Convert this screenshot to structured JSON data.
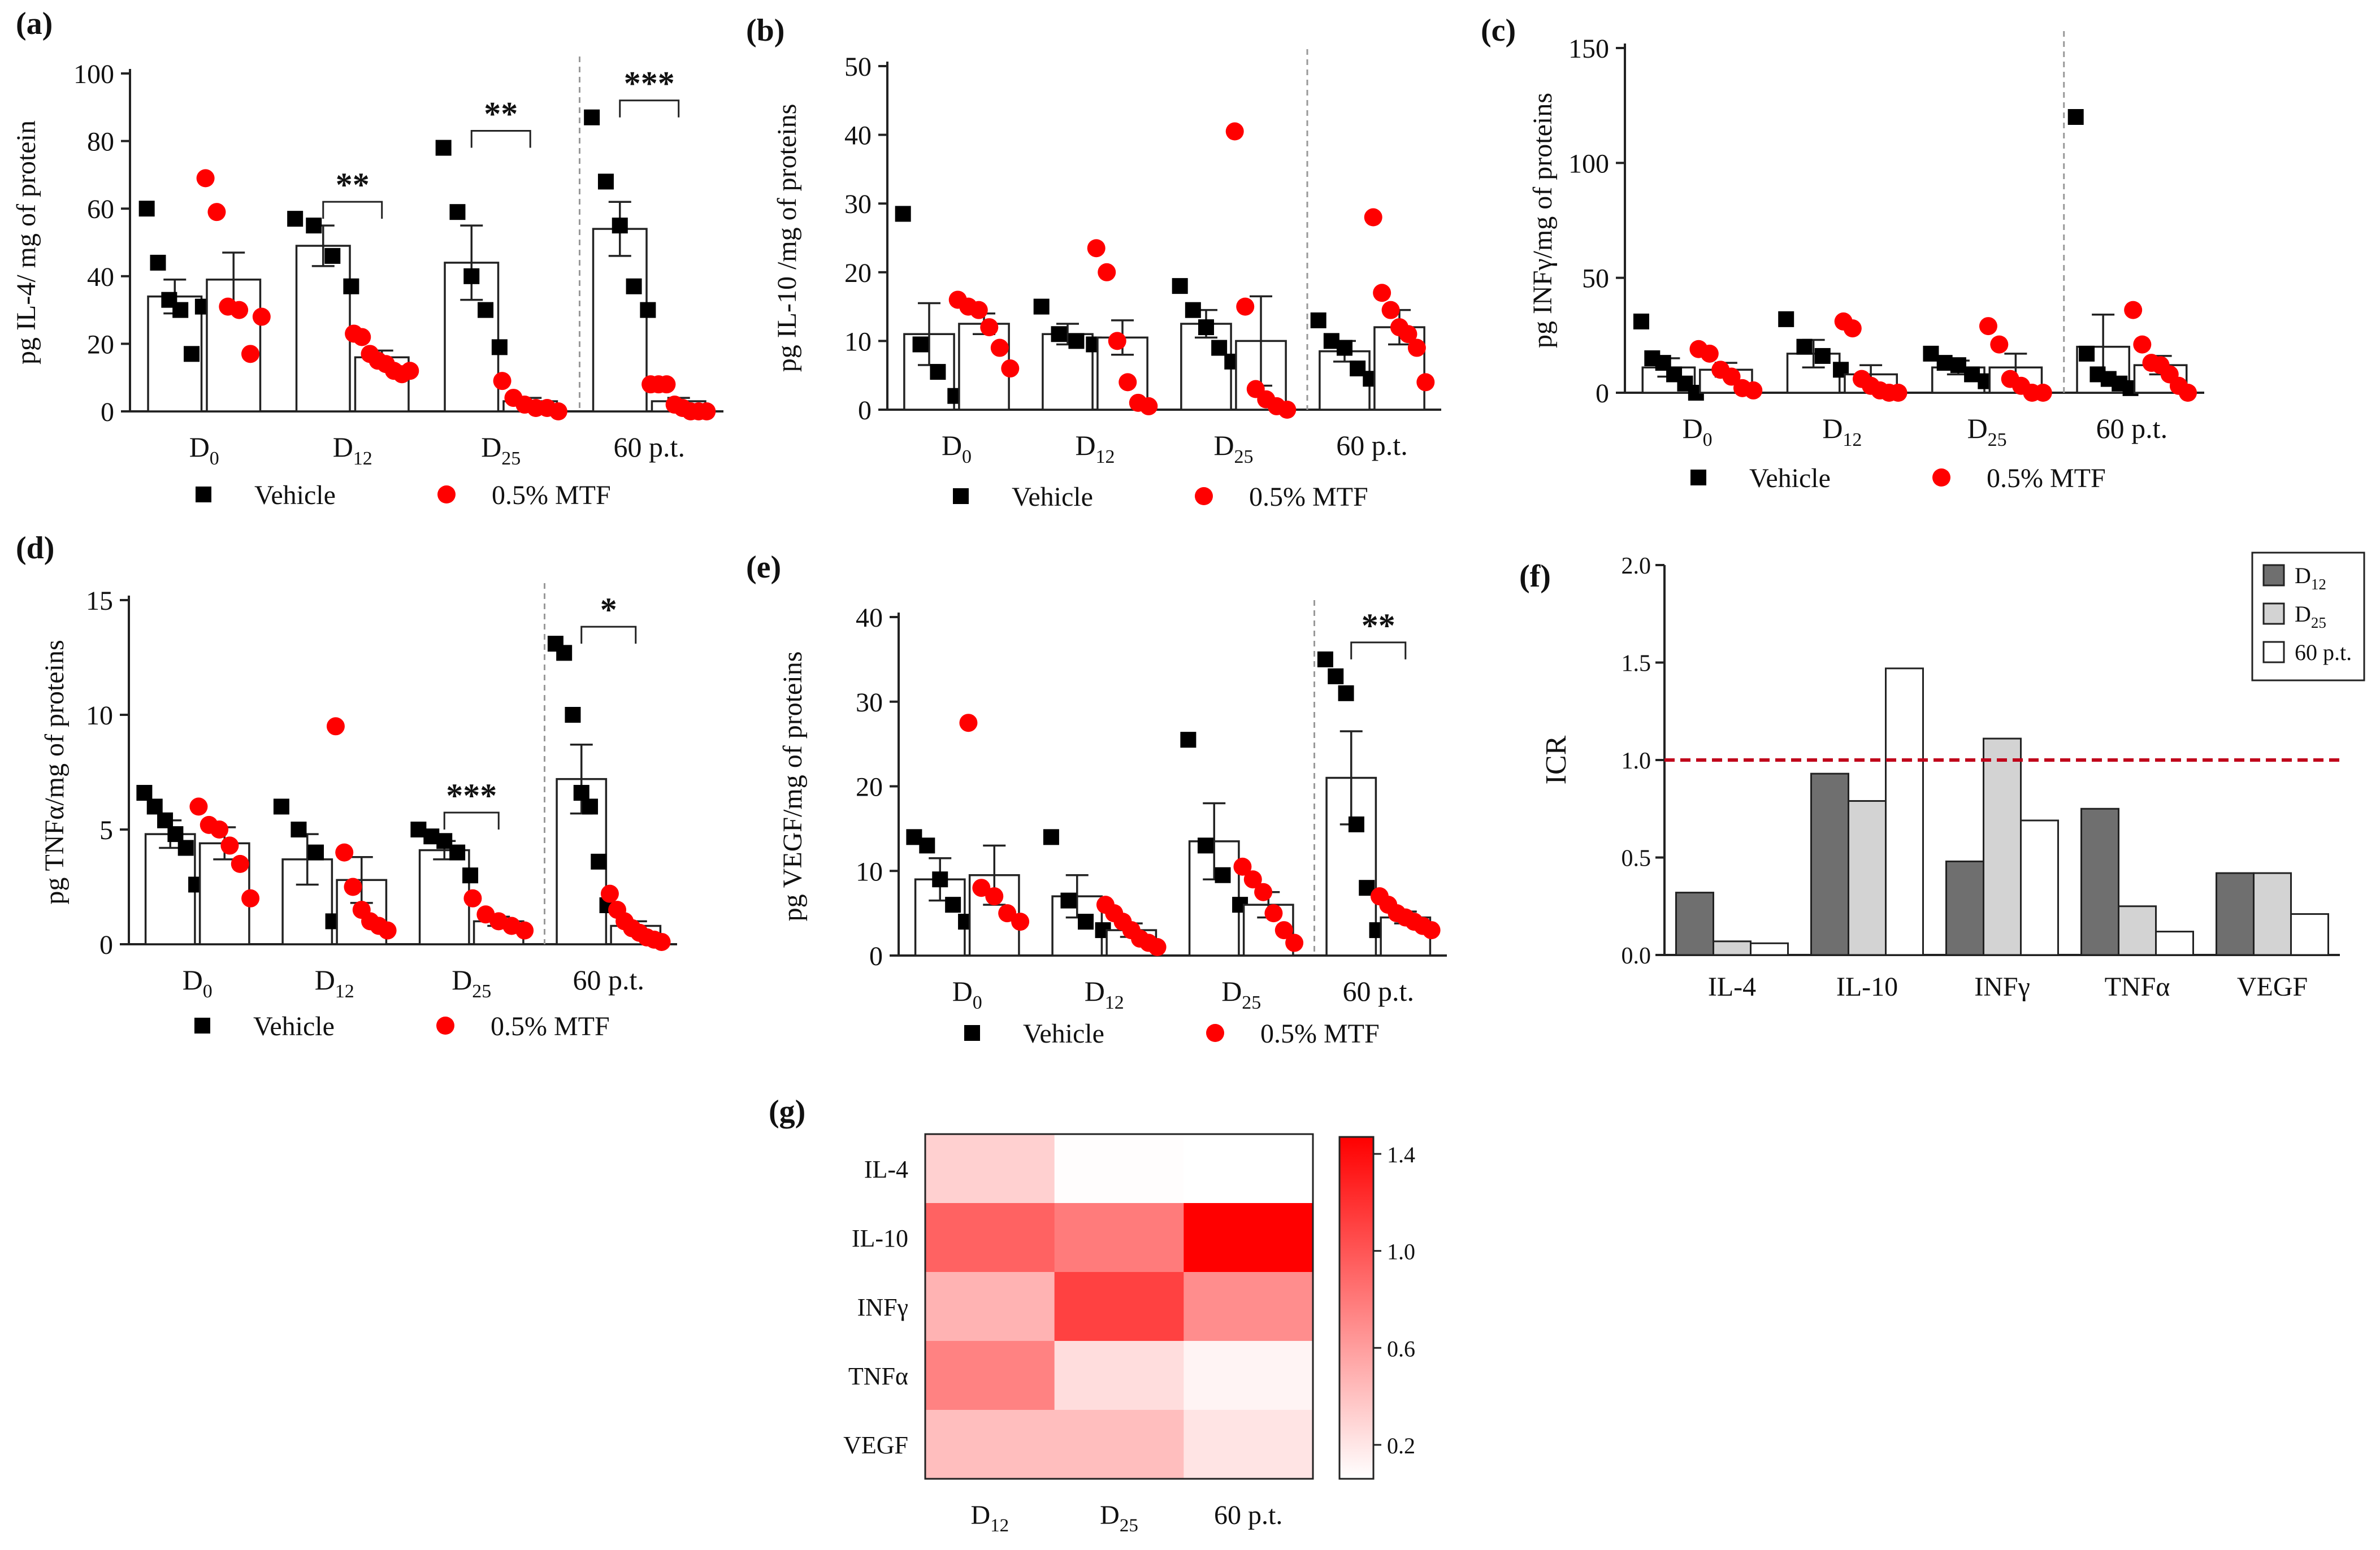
{
  "colors": {
    "vehicle": "#000000",
    "mtf": "#ff0000",
    "bar_d12": "#6f6f6f",
    "bar_d25": "#d3d3d3",
    "bar_60": "#ffffff",
    "ref_line": "#c0001a",
    "heat_max": "#ff0000"
  },
  "legend": {
    "vehicle": "Vehicle",
    "mtf": "0.5% MTF"
  },
  "chart_data": [
    {
      "panel": "(a)",
      "type": "scatter-bar",
      "ylabel": "pg IL-4/ mg of protein",
      "ylim": [
        0,
        100
      ],
      "yticks": [
        0,
        20,
        40,
        60,
        80,
        100
      ],
      "groups": [
        {
          "label": "D",
          "sub": "0",
          "vehicle": {
            "mean": 34,
            "sem": 5,
            "points": [
              60,
              44,
              33,
              30,
              17,
              31
            ]
          },
          "mtf": {
            "mean": 39,
            "sem": 8,
            "points": [
              69,
              59,
              31,
              30,
              17,
              28
            ]
          }
        },
        {
          "label": "D",
          "sub": "12",
          "vehicle": {
            "mean": 49,
            "sem": 6,
            "points": [
              57,
              55,
              46,
              37
            ]
          },
          "mtf": {
            "mean": 16,
            "sem": 2,
            "points": [
              23,
              22,
              17,
              15,
              14,
              12,
              11,
              12
            ]
          }
        },
        {
          "label": "D",
          "sub": "25",
          "vehicle": {
            "mean": 44,
            "sem": 11,
            "points": [
              78,
              59,
              40,
              30,
              19
            ]
          },
          "mtf": {
            "mean": 3,
            "sem": 1,
            "points": [
              9,
              4,
              2,
              1,
              1,
              0
            ]
          }
        },
        {
          "label": "60 p.t.",
          "sub": "",
          "vehicle": {
            "mean": 54,
            "sem": 8,
            "points": [
              87,
              68,
              55,
              37,
              30
            ]
          },
          "mtf": {
            "mean": 3,
            "sem": 1,
            "points": [
              8,
              8,
              8,
              2,
              1,
              0,
              0,
              0
            ]
          }
        }
      ],
      "sig": [
        {
          "group": 1,
          "text": "**"
        },
        {
          "group": 2,
          "text": "**"
        },
        {
          "group": 3,
          "text": "***"
        }
      ],
      "divider_after": 2
    },
    {
      "panel": "(b)",
      "type": "scatter-bar",
      "ylabel": "pg IL-10 /mg of proteins",
      "ylim": [
        0,
        50
      ],
      "yticks": [
        0,
        10,
        20,
        30,
        40,
        50
      ],
      "groups": [
        {
          "label": "D",
          "sub": "0",
          "vehicle": {
            "mean": 11,
            "sem": 4.5,
            "points": [
              28.5,
              9.5,
              5.5,
              2
            ]
          },
          "mtf": {
            "mean": 12.5,
            "sem": 1.5,
            "points": [
              16,
              15,
              14.5,
              12,
              9,
              6
            ]
          }
        },
        {
          "label": "D",
          "sub": "12",
          "vehicle": {
            "mean": 11,
            "sem": 1.5,
            "points": [
              15,
              11,
              10,
              9.5
            ]
          },
          "mtf": {
            "mean": 10.5,
            "sem": 2.5,
            "points": [
              23.5,
              20,
              10,
              4,
              1,
              0.5
            ]
          }
        },
        {
          "label": "D",
          "sub": "25",
          "vehicle": {
            "mean": 12.5,
            "sem": 2,
            "points": [
              18,
              14.5,
              12,
              9,
              7
            ]
          },
          "mtf": {
            "mean": 10,
            "sem": 6.5,
            "points": [
              40.5,
              15,
              3,
              1.5,
              0.5,
              0
            ]
          }
        },
        {
          "label": "60 p.t.",
          "sub": "",
          "vehicle": {
            "mean": 8.5,
            "sem": 1.5,
            "points": [
              13,
              10,
              9,
              6,
              4.5
            ]
          },
          "mtf": {
            "mean": 12,
            "sem": 2.5,
            "points": [
              28,
              17,
              14.5,
              12,
              11,
              9,
              4
            ]
          }
        }
      ],
      "sig": [],
      "divider_after": 2
    },
    {
      "panel": "(c)",
      "type": "scatter-bar",
      "ylabel": "pg INFγ/mg of proteins",
      "ylim": [
        0,
        150
      ],
      "yticks": [
        0,
        50,
        100,
        150
      ],
      "groups": [
        {
          "label": "D",
          "sub": "0",
          "vehicle": {
            "mean": 11,
            "sem": 4,
            "points": [
              31,
              15,
              13,
              8,
              4,
              0
            ]
          },
          "mtf": {
            "mean": 10,
            "sem": 3,
            "points": [
              19,
              17,
              10,
              7,
              2,
              1
            ]
          }
        },
        {
          "label": "D",
          "sub": "12",
          "vehicle": {
            "mean": 17,
            "sem": 6,
            "points": [
              32,
              20,
              16,
              10
            ]
          },
          "mtf": {
            "mean": 8,
            "sem": 4,
            "points": [
              31,
              28,
              6,
              3,
              1,
              0,
              0
            ]
          }
        },
        {
          "label": "D",
          "sub": "25",
          "vehicle": {
            "mean": 11,
            "sem": 3,
            "points": [
              17,
              13,
              12,
              8,
              5
            ]
          },
          "mtf": {
            "mean": 11,
            "sem": 6,
            "points": [
              29,
              21,
              6,
              3,
              0,
              0
            ]
          }
        },
        {
          "label": "60 p.t.",
          "sub": "",
          "vehicle": {
            "mean": 20,
            "sem": 14,
            "points": [
              120,
              17,
              8,
              6,
              4,
              2
            ]
          },
          "mtf": {
            "mean": 12,
            "sem": 4,
            "points": [
              36,
              21,
              13,
              12,
              8,
              3,
              0
            ]
          }
        }
      ],
      "sig": [],
      "divider_after": 2
    },
    {
      "panel": "(d)",
      "type": "scatter-bar",
      "ylabel": "pg TNFα/mg of proteins",
      "ylim": [
        0,
        15
      ],
      "yticks": [
        0,
        5,
        10,
        15
      ],
      "groups": [
        {
          "label": "D",
          "sub": "0",
          "vehicle": {
            "mean": 4.8,
            "sem": 0.6,
            "points": [
              6.6,
              6,
              5.4,
              4.8,
              4.2,
              2.6
            ]
          },
          "mtf": {
            "mean": 4.4,
            "sem": 0.7,
            "points": [
              6,
              5.2,
              5,
              4.3,
              3.5,
              2
            ]
          }
        },
        {
          "label": "D",
          "sub": "12",
          "vehicle": {
            "mean": 3.7,
            "sem": 1.1,
            "points": [
              6,
              5,
              4,
              1
            ]
          },
          "mtf": {
            "mean": 2.8,
            "sem": 1,
            "points": [
              9.5,
              4,
              2.5,
              1.5,
              1,
              0.8,
              0.6
            ]
          }
        },
        {
          "label": "D",
          "sub": "25",
          "vehicle": {
            "mean": 4.1,
            "sem": 0.4,
            "points": [
              5,
              4.7,
              4.5,
              4,
              3
            ]
          },
          "mtf": {
            "mean": 1,
            "sem": 0.2,
            "points": [
              2,
              1.3,
              1,
              0.8,
              0.6
            ]
          }
        },
        {
          "label": "60 p.t.",
          "sub": "",
          "vehicle": {
            "mean": 7.2,
            "sem": 1.5,
            "points": [
              13.1,
              12.7,
              10,
              6.6,
              6,
              3.6,
              1.7
            ]
          },
          "mtf": {
            "mean": 0.8,
            "sem": 0.2,
            "points": [
              2.2,
              1.5,
              1,
              0.7,
              0.5,
              0.3,
              0.2,
              0.1
            ]
          }
        }
      ],
      "sig": [
        {
          "group": 2,
          "text": "***"
        },
        {
          "group": 3,
          "text": "*"
        }
      ],
      "divider_after": 2
    },
    {
      "panel": "(e)",
      "type": "scatter-bar",
      "ylabel": "pg VEGF/mg of proteins",
      "ylim": [
        0,
        40
      ],
      "yticks": [
        0,
        10,
        20,
        30,
        40
      ],
      "groups": [
        {
          "label": "D",
          "sub": "0",
          "vehicle": {
            "mean": 9,
            "sem": 2.5,
            "points": [
              14,
              13,
              9,
              6,
              4
            ]
          },
          "mtf": {
            "mean": 9.5,
            "sem": 3.5,
            "points": [
              27.5,
              8,
              7,
              5,
              4
            ]
          }
        },
        {
          "label": "D",
          "sub": "12",
          "vehicle": {
            "mean": 7,
            "sem": 2.5,
            "points": [
              14,
              6.5,
              4,
              3
            ]
          },
          "mtf": {
            "mean": 3,
            "sem": 0.8,
            "points": [
              6,
              5,
              4,
              3,
              2,
              1.5,
              1
            ]
          }
        },
        {
          "label": "D",
          "sub": "25",
          "vehicle": {
            "mean": 13.5,
            "sem": 4.5,
            "points": [
              25.5,
              13,
              9.5,
              6
            ]
          },
          "mtf": {
            "mean": 6,
            "sem": 1.5,
            "points": [
              10.5,
              9,
              7.5,
              5,
              3,
              1.5
            ]
          }
        },
        {
          "label": "60 p.t.",
          "sub": "",
          "vehicle": {
            "mean": 21,
            "sem": 5.5,
            "points": [
              35,
              33,
              31,
              15.5,
              8,
              3
            ]
          },
          "mtf": {
            "mean": 4.5,
            "sem": 0.7,
            "points": [
              7,
              6,
              5,
              4.5,
              4,
              3.5,
              3
            ]
          }
        }
      ],
      "sig": [
        {
          "group": 3,
          "text": "**"
        }
      ],
      "divider_after": 2
    },
    {
      "panel": "(f)",
      "type": "bar",
      "ylabel": "ICR",
      "ylim": [
        0,
        2
      ],
      "yticks": [
        "0.0",
        "0.5",
        "1.0",
        "1.5",
        "2.0"
      ],
      "categories": [
        "IL-4",
        "IL-10",
        "INFγ",
        "TNFα",
        "VEGF"
      ],
      "series": [
        {
          "name": "D",
          "sub": "12",
          "values": [
            0.32,
            0.93,
            0.48,
            0.75,
            0.42
          ]
        },
        {
          "name": "D",
          "sub": "25",
          "values": [
            0.07,
            0.79,
            1.11,
            0.25,
            0.42
          ]
        },
        {
          "name": "60 p.t.",
          "sub": "",
          "values": [
            0.06,
            1.47,
            0.69,
            0.12,
            0.21
          ]
        }
      ],
      "reference_line": 1.0
    },
    {
      "panel": "(g)",
      "type": "heatmap",
      "rows": [
        "IL-4",
        "IL-10",
        "INFγ",
        "TNFα",
        "VEGF"
      ],
      "columns": [
        {
          "label": "D",
          "sub": "12"
        },
        {
          "label": "D",
          "sub": "25"
        },
        {
          "label": "60 p.t.",
          "sub": ""
        }
      ],
      "values": [
        [
          0.32,
          0.07,
          0.06
        ],
        [
          0.93,
          0.79,
          1.47
        ],
        [
          0.48,
          1.11,
          0.69
        ],
        [
          0.75,
          0.25,
          0.12
        ],
        [
          0.42,
          0.42,
          0.21
        ]
      ],
      "colorbar": {
        "min": 0.06,
        "max": 1.47,
        "ticks": [
          "1.4",
          "1.0",
          "0.6",
          "0.2"
        ]
      }
    }
  ]
}
